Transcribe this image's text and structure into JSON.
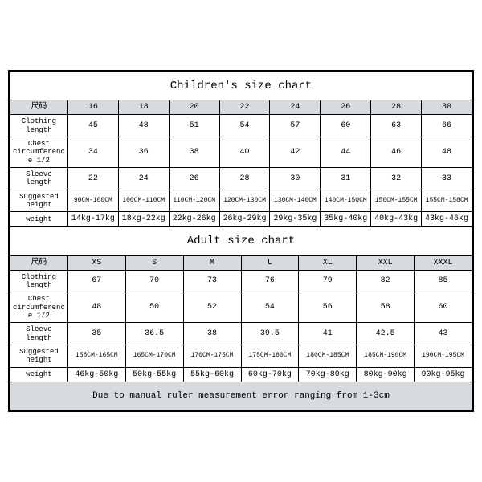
{
  "children": {
    "title": "Children's size chart",
    "header_label": "尺码",
    "sizes": [
      "16",
      "18",
      "20",
      "22",
      "24",
      "26",
      "28",
      "30"
    ],
    "rows": [
      {
        "label": "Clothing length",
        "values": [
          "45",
          "48",
          "51",
          "54",
          "57",
          "60",
          "63",
          "66"
        ]
      },
      {
        "label": "Chest circumference 1/2",
        "values": [
          "34",
          "36",
          "38",
          "40",
          "42",
          "44",
          "46",
          "48"
        ]
      },
      {
        "label": "Sleeve length",
        "values": [
          "22",
          "24",
          "26",
          "28",
          "30",
          "31",
          "32",
          "33"
        ]
      },
      {
        "label": "Suggested height",
        "values": [
          "90CM-100CM",
          "100CM-110CM",
          "110CM-120CM",
          "120CM-130CM",
          "130CM-140CM",
          "140CM-150CM",
          "150CM-155CM",
          "155CM-158CM"
        ],
        "small": true
      },
      {
        "label": "weight",
        "values": [
          "14kg-17kg",
          "18kg-22kg",
          "22kg-26kg",
          "26kg-29kg",
          "29kg-35kg",
          "35kg-40kg",
          "40kg-43kg",
          "43kg-46kg"
        ]
      }
    ]
  },
  "adult": {
    "title": "Adult size chart",
    "header_label": "尺码",
    "sizes": [
      "XS",
      "S",
      "M",
      "L",
      "XL",
      "XXL",
      "XXXL"
    ],
    "rows": [
      {
        "label": "Clothing length",
        "values": [
          "67",
          "70",
          "73",
          "76",
          "79",
          "82",
          "85"
        ]
      },
      {
        "label": "Chest circumference 1/2",
        "values": [
          "48",
          "50",
          "52",
          "54",
          "56",
          "58",
          "60"
        ]
      },
      {
        "label": "Sleeve length",
        "values": [
          "35",
          "36.5",
          "38",
          "39.5",
          "41",
          "42.5",
          "43"
        ]
      },
      {
        "label": "Suggested height",
        "values": [
          "158CM-165CM",
          "165CM-170CM",
          "170CM-175CM",
          "175CM-180CM",
          "180CM-185CM",
          "185CM-190CM",
          "190CM-195CM"
        ],
        "small": true
      },
      {
        "label": "weight",
        "values": [
          "46kg-50kg",
          "50kg-55kg",
          "55kg-60kg",
          "60kg-70kg",
          "70kg-80kg",
          "80kg-90kg",
          "90kg-95kg"
        ]
      }
    ]
  },
  "note": "Due to manual ruler measurement error ranging from 1-3cm",
  "colors": {
    "header_bg": "#d6dbe0",
    "border": "#000000",
    "bg": "#ffffff"
  }
}
